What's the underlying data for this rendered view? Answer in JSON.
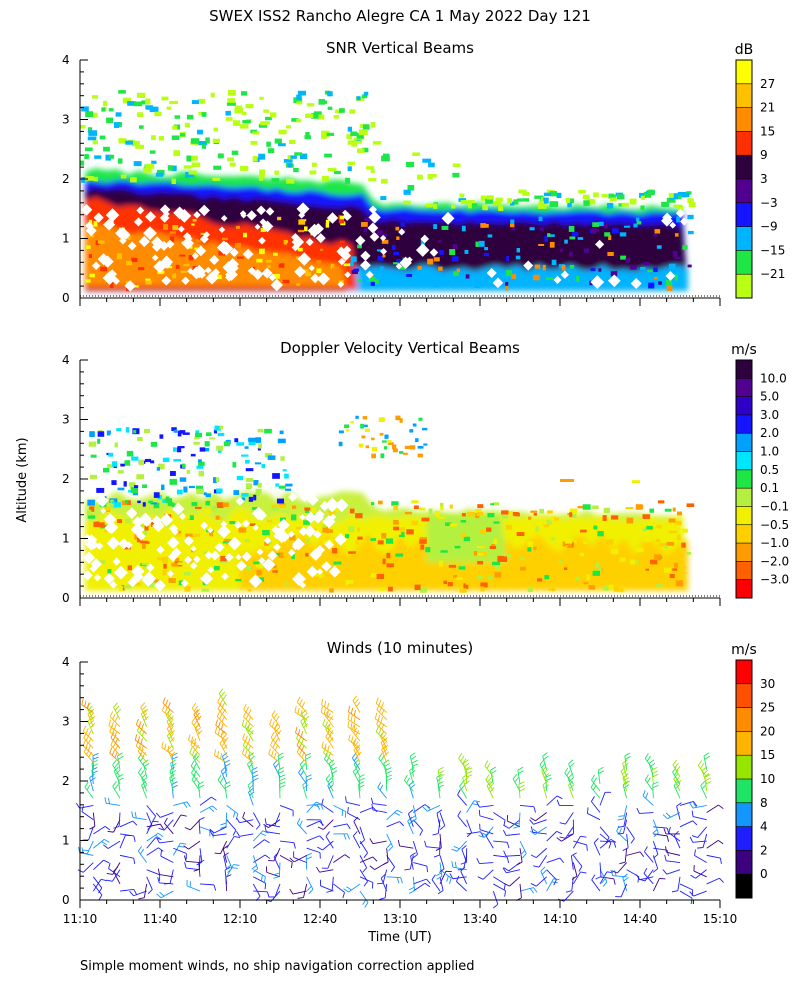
{
  "figure": {
    "title": "SWEX ISS2 Rancho Alegre CA    1 May 2022 Day 121",
    "footnote": "Simple moment winds, no ship navigation correction applied",
    "ylabel": "Altitude (km)",
    "xlabel": "Time (UT)",
    "x_tick_labels": [
      "11:10",
      "11:40",
      "12:10",
      "12:40",
      "13:10",
      "13:40",
      "14:10",
      "14:40",
      "15:10"
    ],
    "y_tick_labels": [
      "0",
      "1",
      "2",
      "3",
      "4"
    ]
  },
  "chart_data": [
    {
      "type": "heatmap",
      "title": "SNR Vertical Beams",
      "xlabel": "Time (UT)",
      "ylabel": "Altitude (km)",
      "xlim_minutes_from_1110": [
        0,
        240
      ],
      "ylim": [
        0,
        4
      ],
      "colorbar": {
        "unit": "dB",
        "labels": [
          "27",
          "21",
          "15",
          "9",
          "3",
          "−3",
          "−9",
          "−15",
          "−21"
        ],
        "colors": [
          "#ffff00",
          "#ffc000",
          "#ff8c00",
          "#ff3000",
          "#2e003e",
          "#520090",
          "#1414ff",
          "#00b4ff",
          "#1ee646",
          "#b8ff14"
        ],
        "range": [
          -24,
          33
        ]
      },
      "description_values": {
        "strong_echo_below_1km_before_1230_dB": 27,
        "layer_top_km_start": 2.0,
        "layer_top_km_end": 1.5
      }
    },
    {
      "type": "heatmap",
      "title": "Doppler Velocity Vertical Beams",
      "xlabel": "Time (UT)",
      "ylabel": "Altitude (km)",
      "xlim_minutes_from_1110": [
        0,
        240
      ],
      "ylim": [
        0,
        4
      ],
      "colorbar": {
        "unit": "m/s",
        "labels": [
          "10.0",
          "5.0",
          "3.0",
          "2.0",
          "1.0",
          "0.5",
          "0.1",
          "−0.1",
          "−0.5",
          "−1.0",
          "−2.0",
          "−3.0"
        ],
        "colors": [
          "#2e003e",
          "#520090",
          "#3000c8",
          "#1414ff",
          "#00a0ff",
          "#00e6ff",
          "#1ee646",
          "#b4f040",
          "#f0f000",
          "#ffd000",
          "#ff9c00",
          "#ff6000",
          "#ff0000"
        ]
      }
    },
    {
      "type": "scatter",
      "subtype": "wind barbs",
      "title": "Winds (10 minutes)",
      "xlabel": "Time (UT)",
      "ylabel": "Altitude (km)",
      "xlim_minutes_from_1110": [
        0,
        240
      ],
      "ylim": [
        0,
        4
      ],
      "colorbar": {
        "unit": "m/s",
        "labels": [
          "30",
          "25",
          "20",
          "15",
          "10",
          "8",
          "4",
          "2",
          "0"
        ],
        "colors": [
          "#ff0000",
          "#ff5000",
          "#ff8c00",
          "#ffb400",
          "#96e600",
          "#1ee664",
          "#1496ff",
          "#1e1eff",
          "#3c0080",
          "#000000"
        ]
      },
      "profile_times_minutes": [
        5,
        15,
        25,
        35,
        45,
        55,
        65,
        75,
        85,
        95,
        105,
        115,
        125,
        135,
        145,
        155,
        165,
        175,
        185,
        195,
        205,
        215,
        225,
        235
      ]
    }
  ]
}
